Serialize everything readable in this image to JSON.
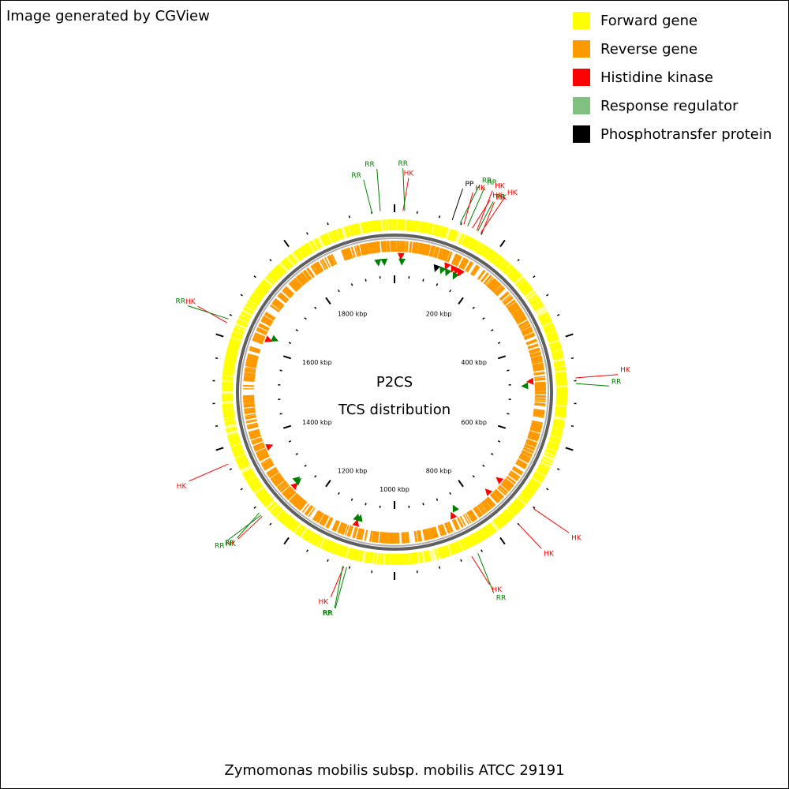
{
  "credit": "Image generated by CGView",
  "caption": "Zymomonas mobilis subsp. mobilis ATCC 29191",
  "center": {
    "title": "P2CS",
    "subtitle": "TCS distribution"
  },
  "legend": [
    {
      "label": "Forward gene",
      "color": "#ffff00"
    },
    {
      "label": "Reverse gene",
      "color": "#ff9900"
    },
    {
      "label": "Histidine kinase",
      "color": "#ff0000"
    },
    {
      "label": "Response regulator",
      "color": "#80c080"
    },
    {
      "label": "Phosphotransfer protein",
      "color": "#000000"
    }
  ],
  "map": {
    "genome_kbp": 2000,
    "backbone_color": "#808080",
    "tick_labels": [
      {
        "kbp": 200,
        "text": "200 kbp"
      },
      {
        "kbp": 400,
        "text": "400 kbp"
      },
      {
        "kbp": 600,
        "text": "600 kbp"
      },
      {
        "kbp": 800,
        "text": "800 kbp"
      },
      {
        "kbp": 1000,
        "text": "1000 kbp"
      },
      {
        "kbp": 1200,
        "text": "1200 kbp"
      },
      {
        "kbp": 1400,
        "text": "1400 kbp"
      },
      {
        "kbp": 1600,
        "text": "1600 kbp"
      },
      {
        "kbp": 1800,
        "text": "1800 kbp"
      }
    ],
    "features": [
      {
        "type": "RR",
        "kbp": 1960
      },
      {
        "type": "RR",
        "kbp": 1975
      },
      {
        "type": "HK",
        "kbp": 15
      },
      {
        "type": "RR",
        "kbp": 18
      },
      {
        "type": "PP",
        "kbp": 103
      },
      {
        "type": "RR",
        "kbp": 118
      },
      {
        "type": "HK",
        "kbp": 125
      },
      {
        "type": "RR",
        "kbp": 132
      },
      {
        "type": "HK",
        "kbp": 141
      },
      {
        "type": "HK",
        "kbp": 150
      },
      {
        "type": "RR",
        "kbp": 152
      },
      {
        "type": "HK",
        "kbp": 158
      },
      {
        "type": "HK",
        "kbp": 160
      },
      {
        "type": "HK",
        "kbp": 475
      },
      {
        "type": "RR",
        "kbp": 485
      },
      {
        "type": "HK",
        "kbp": 722
      },
      {
        "type": "HK",
        "kbp": 760
      },
      {
        "type": "RR",
        "kbp": 848
      },
      {
        "type": "HK",
        "kbp": 860
      },
      {
        "type": "RR",
        "kbp": 1085
      },
      {
        "type": "HK",
        "kbp": 1090
      },
      {
        "type": "RR",
        "kbp": 1092
      },
      {
        "type": "HK",
        "kbp": 1260
      },
      {
        "type": "RR",
        "kbp": 1263
      },
      {
        "type": "RR",
        "kbp": 1268
      },
      {
        "type": "HK",
        "kbp": 1370
      },
      {
        "type": "HK",
        "kbp": 1625
      },
      {
        "type": "RR",
        "kbp": 1632
      }
    ]
  }
}
